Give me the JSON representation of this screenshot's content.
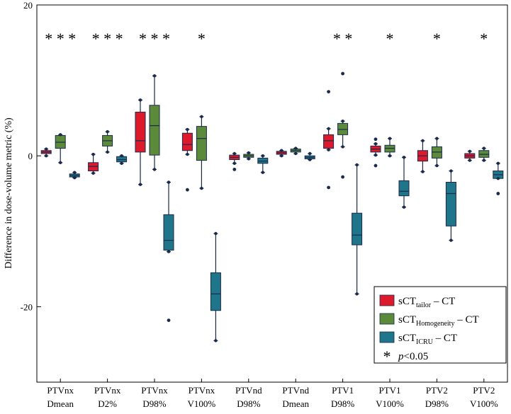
{
  "chart_data": {
    "type": "box",
    "ylabel": "Difference in dose-volume metric (%)",
    "ylim": [
      -30,
      20
    ],
    "yticks": [
      -20,
      0,
      20
    ],
    "grid": false,
    "legend_position": "bottom-right",
    "categories": [
      [
        "PTVnx",
        "Dmean"
      ],
      [
        "PTVnx",
        "D2%"
      ],
      [
        "PTVnx",
        "D98%"
      ],
      [
        "PTVnx",
        "V100%"
      ],
      [
        "PTVnd",
        "D98%"
      ],
      [
        "PTVnd",
        "Dmean"
      ],
      [
        "PTV1",
        "D98%"
      ],
      [
        "PTV1",
        "V100%"
      ],
      [
        "PTV2",
        "D98%"
      ],
      [
        "PTV2",
        "V100%"
      ]
    ],
    "significance": [
      "* * *",
      "* * *",
      "* * *",
      "*",
      "",
      "",
      "* *",
      "*",
      "*",
      "*"
    ],
    "legend": {
      "entries": [
        {
          "base": "sCT",
          "sub": "tailor",
          "suffix": " – CT",
          "color": "#dd1a2b"
        },
        {
          "base": "sCT",
          "sub": "Homogeneity",
          "suffix": " – CT",
          "color": "#5a8a3a"
        },
        {
          "base": "sCT",
          "sub": "ICRU",
          "suffix": " – CT",
          "color": "#1f7589"
        }
      ],
      "star_symbol": "*",
      "star_text": "p",
      "star_suffix": "<0.05"
    },
    "series": [
      {
        "name": "sCT_tailor – CT",
        "color": "#dd1a2b",
        "boxes": [
          {
            "min": 0.0,
            "q1": 0.3,
            "median": 0.5,
            "q3": 0.7,
            "max": 0.9,
            "outliers": []
          },
          {
            "min": -2.3,
            "q1": -2.0,
            "median": -1.4,
            "q3": -0.9,
            "max": 0.2,
            "outliers": []
          },
          {
            "min": -3.8,
            "q1": 0.5,
            "median": 2.0,
            "q3": 5.8,
            "max": 7.4,
            "outliers": []
          },
          {
            "min": 0.2,
            "q1": 0.7,
            "median": 1.5,
            "q3": 3.0,
            "max": 3.5,
            "outliers": [
              -4.5
            ]
          },
          {
            "min": -1.0,
            "q1": -0.5,
            "median": -0.2,
            "q3": 0.1,
            "max": 0.3,
            "outliers": [
              -1.8
            ]
          },
          {
            "min": 0.0,
            "q1": 0.2,
            "median": 0.4,
            "q3": 0.6,
            "max": 0.7,
            "outliers": []
          },
          {
            "min": 0.8,
            "q1": 1.0,
            "median": 2.0,
            "q3": 2.8,
            "max": 3.6,
            "outliers": [
              8.5,
              -4.2
            ]
          },
          {
            "min": 0.1,
            "q1": 0.5,
            "median": 0.9,
            "q3": 1.3,
            "max": 1.6,
            "outliers": [
              2.2,
              -1.3
            ]
          },
          {
            "min": -2.1,
            "q1": -0.7,
            "median": 0.0,
            "q3": 0.7,
            "max": 2.0,
            "outliers": []
          },
          {
            "min": -0.6,
            "q1": -0.3,
            "median": 0.0,
            "q3": 0.3,
            "max": 0.6,
            "outliers": []
          }
        ]
      },
      {
        "name": "sCT_Homogeneity – CT",
        "color": "#5a8a3a",
        "boxes": [
          {
            "min": -0.9,
            "q1": 1.0,
            "median": 1.8,
            "q3": 2.7,
            "max": 2.8,
            "outliers": []
          },
          {
            "min": 0.5,
            "q1": 1.3,
            "median": 2.0,
            "q3": 2.7,
            "max": 3.2,
            "outliers": []
          },
          {
            "min": -1.8,
            "q1": 0.1,
            "median": 4.0,
            "q3": 6.7,
            "max": 10.6,
            "outliers": []
          },
          {
            "min": -4.3,
            "q1": -0.6,
            "median": 2.3,
            "q3": 3.9,
            "max": 5.2,
            "outliers": []
          },
          {
            "min": -0.4,
            "q1": -0.2,
            "median": 0.0,
            "q3": 0.2,
            "max": 0.4,
            "outliers": []
          },
          {
            "min": 0.3,
            "q1": 0.5,
            "median": 0.7,
            "q3": 0.9,
            "max": 1.0,
            "outliers": []
          },
          {
            "min": 1.2,
            "q1": 2.8,
            "median": 3.5,
            "q3": 4.3,
            "max": 4.6,
            "outliers": [
              10.9,
              -2.8
            ]
          },
          {
            "min": 0.0,
            "q1": 0.5,
            "median": 1.0,
            "q3": 1.4,
            "max": 2.3,
            "outliers": []
          },
          {
            "min": -1.3,
            "q1": -0.3,
            "median": 0.5,
            "q3": 1.2,
            "max": 2.3,
            "outliers": []
          },
          {
            "min": -0.6,
            "q1": -0.2,
            "median": 0.2,
            "q3": 0.7,
            "max": 1.0,
            "outliers": []
          }
        ]
      },
      {
        "name": "sCT_ICRU – CT",
        "color": "#1f7589",
        "boxes": [
          {
            "min": -2.9,
            "q1": -2.8,
            "median": -2.6,
            "q3": -2.4,
            "max": -2.2,
            "outliers": []
          },
          {
            "min": -1.0,
            "q1": -0.8,
            "median": -0.5,
            "q3": -0.1,
            "max": 0.0,
            "outliers": []
          },
          {
            "min": -12.7,
            "q1": -12.5,
            "median": -11.2,
            "q3": -7.8,
            "max": -3.5,
            "outliers": [
              -21.8
            ]
          },
          {
            "min": -24.5,
            "q1": -20.5,
            "median": -18.3,
            "q3": -15.5,
            "max": -10.3,
            "outliers": []
          },
          {
            "min": -2.2,
            "q1": -1.0,
            "median": -0.7,
            "q3": -0.3,
            "max": 0.0,
            "outliers": []
          },
          {
            "min": -0.5,
            "q1": -0.4,
            "median": -0.2,
            "q3": 0.0,
            "max": 0.3,
            "outliers": []
          },
          {
            "min": -18.3,
            "q1": -11.8,
            "median": -10.5,
            "q3": -7.6,
            "max": -1.2,
            "outliers": []
          },
          {
            "min": -6.8,
            "q1": -5.3,
            "median": -4.7,
            "q3": -3.3,
            "max": -0.2,
            "outliers": []
          },
          {
            "min": -11.2,
            "q1": -9.3,
            "median": -5.0,
            "q3": -3.5,
            "max": -2.0,
            "outliers": []
          },
          {
            "min": -3.0,
            "q1": -3.0,
            "median": -2.5,
            "q3": -2.0,
            "max": -1.0,
            "outliers": [
              -5.0
            ]
          }
        ]
      }
    ]
  }
}
